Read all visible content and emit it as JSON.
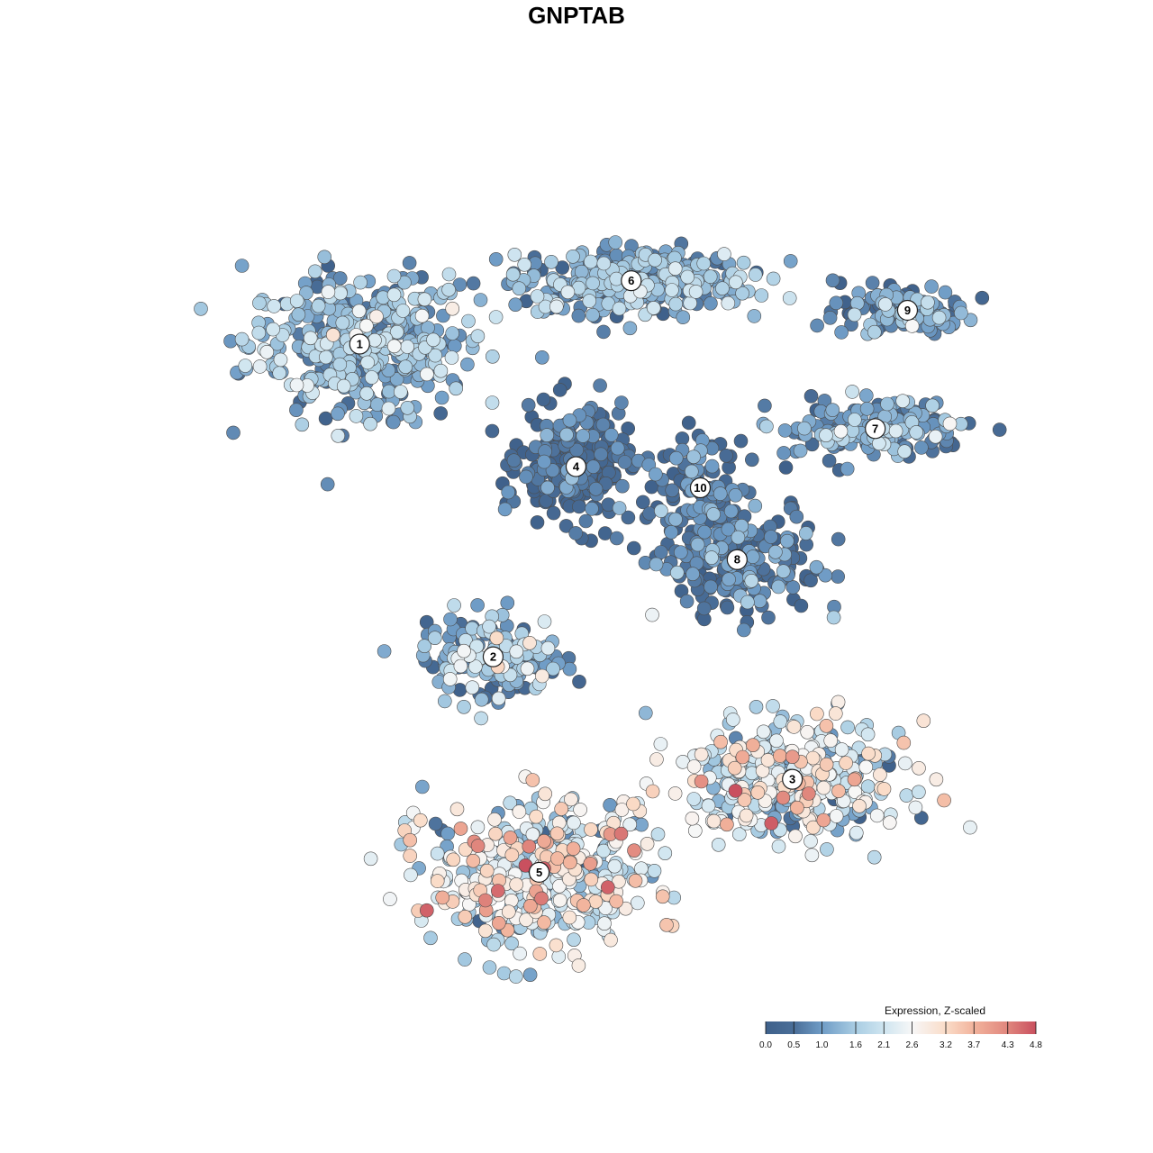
{
  "chart_data": {
    "type": "scatter",
    "title": "GNPTAB",
    "xlabel": "",
    "ylabel": "",
    "grid": false,
    "legend": {
      "title": "Expression, Z-scaled",
      "placement": "bottom-right",
      "ticks": [
        "0.0",
        "0.5",
        "1.0",
        "1.6",
        "2.1",
        "2.6",
        "3.2",
        "3.7",
        "4.3",
        "4.8"
      ],
      "range": [
        0.0,
        4.8
      ],
      "colors": [
        "#3f618b",
        "#4f7fb5",
        "#8ab6d6",
        "#c7e0ee",
        "#f7f7f7",
        "#f6cdb8",
        "#e9967f",
        "#c9505f"
      ]
    },
    "clusters": [
      {
        "label": "1",
        "x": -26.0,
        "y": 26.0
      },
      {
        "label": "2",
        "x": -11.5,
        "y": -11.0
      },
      {
        "label": "3",
        "x": 21.0,
        "y": -25.5
      },
      {
        "label": "4",
        "x": -2.5,
        "y": 11.5
      },
      {
        "label": "5",
        "x": -6.5,
        "y": -36.5
      },
      {
        "label": "6",
        "x": 3.5,
        "y": 33.5
      },
      {
        "label": "7",
        "x": 30.0,
        "y": 16.0
      },
      {
        "label": "8",
        "x": 15.0,
        "y": 0.5
      },
      {
        "label": "9",
        "x": 33.5,
        "y": 30.0
      },
      {
        "label": "10",
        "x": 11.0,
        "y": 9.0
      }
    ],
    "xlim": [
      -45,
      45
    ],
    "ylim": [
      -50,
      47
    ]
  }
}
